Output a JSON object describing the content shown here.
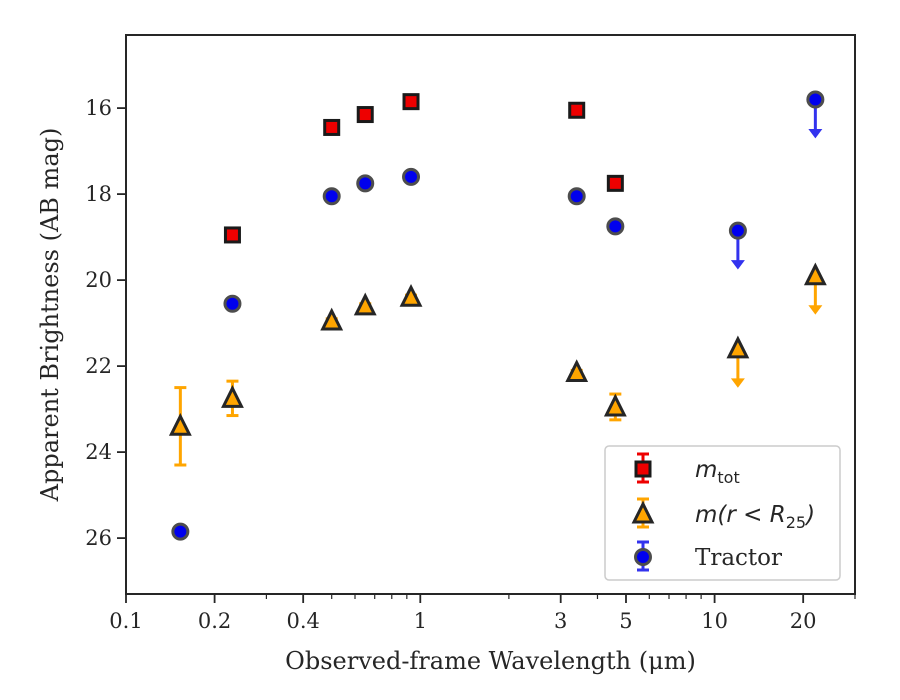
{
  "chart_data": {
    "type": "scatter",
    "title": "",
    "xlabel": "Observed-frame Wavelength (μm)",
    "ylabel": "Apparent Brightness (AB mag)",
    "x_scale": "log",
    "xlim": [
      0.1,
      30
    ],
    "ylim": [
      27.3,
      14.3
    ],
    "y_inverted": true,
    "grid": false,
    "legend_position": "lower right",
    "x_ticks": [
      {
        "value": 0.1,
        "label": "0.1"
      },
      {
        "value": 0.2,
        "label": "0.2"
      },
      {
        "value": 0.4,
        "label": "0.4"
      },
      {
        "value": 1,
        "label": "1"
      },
      {
        "value": 3,
        "label": "3"
      },
      {
        "value": 5,
        "label": "5"
      },
      {
        "value": 10,
        "label": "10"
      },
      {
        "value": 20,
        "label": "20"
      }
    ],
    "y_ticks": [
      {
        "value": 16,
        "label": "16"
      },
      {
        "value": 18,
        "label": "18"
      },
      {
        "value": 20,
        "label": "20"
      },
      {
        "value": 22,
        "label": "22"
      },
      {
        "value": 24,
        "label": "24"
      },
      {
        "value": 26,
        "label": "26"
      }
    ],
    "series": [
      {
        "key": "m_tot",
        "legend_main": "m",
        "legend_sub": "tot",
        "marker": "square",
        "face_color": "#ee0000",
        "edge_color": "#1a1a1a",
        "err_color": "#ee0000",
        "points": [
          {
            "x": 0.23,
            "y": 18.95,
            "err": 0.05
          },
          {
            "x": 0.5,
            "y": 16.45,
            "err": 0.05
          },
          {
            "x": 0.65,
            "y": 16.15,
            "err": 0.05
          },
          {
            "x": 0.93,
            "y": 15.85,
            "err": 0.05
          },
          {
            "x": 3.4,
            "y": 16.05,
            "err": 0.05
          },
          {
            "x": 4.6,
            "y": 17.75,
            "err": 0.05
          }
        ]
      },
      {
        "key": "m_r25",
        "legend_main": "m(r < R",
        "legend_sub": "25",
        "legend_end": ")",
        "marker": "triangle",
        "face_color": "#ffa500",
        "edge_color": "#262626",
        "err_color": "#ffa500",
        "points": [
          {
            "x": 0.153,
            "y": 23.4,
            "err": 0.9
          },
          {
            "x": 0.23,
            "y": 22.75,
            "err": 0.4
          },
          {
            "x": 0.5,
            "y": 20.95,
            "err": 0.05
          },
          {
            "x": 0.65,
            "y": 20.6,
            "err": 0.05
          },
          {
            "x": 0.93,
            "y": 20.4,
            "err": 0.05
          },
          {
            "x": 3.4,
            "y": 22.15,
            "err": 0.05
          },
          {
            "x": 4.6,
            "y": 22.95,
            "err": 0.3
          },
          {
            "x": 12.0,
            "y": 21.6,
            "upper_limit": true
          },
          {
            "x": 22.0,
            "y": 19.9,
            "upper_limit": true
          }
        ]
      },
      {
        "key": "tractor",
        "legend_main": "Tractor",
        "marker": "circle",
        "face_color": "#0000ee",
        "edge_color": "#4d4d4d",
        "err_color": "#3333ee",
        "points": [
          {
            "x": 0.153,
            "y": 25.85,
            "err": 0.05
          },
          {
            "x": 0.23,
            "y": 20.55,
            "err": 0.05
          },
          {
            "x": 0.5,
            "y": 18.05,
            "err": 0.05
          },
          {
            "x": 0.65,
            "y": 17.75,
            "err": 0.05
          },
          {
            "x": 0.93,
            "y": 17.6,
            "err": 0.05
          },
          {
            "x": 3.4,
            "y": 18.05,
            "err": 0.05
          },
          {
            "x": 4.6,
            "y": 18.75,
            "err": 0.05
          },
          {
            "x": 12.0,
            "y": 18.85,
            "upper_limit": true
          },
          {
            "x": 22.0,
            "y": 15.8,
            "upper_limit": true
          }
        ]
      }
    ]
  }
}
